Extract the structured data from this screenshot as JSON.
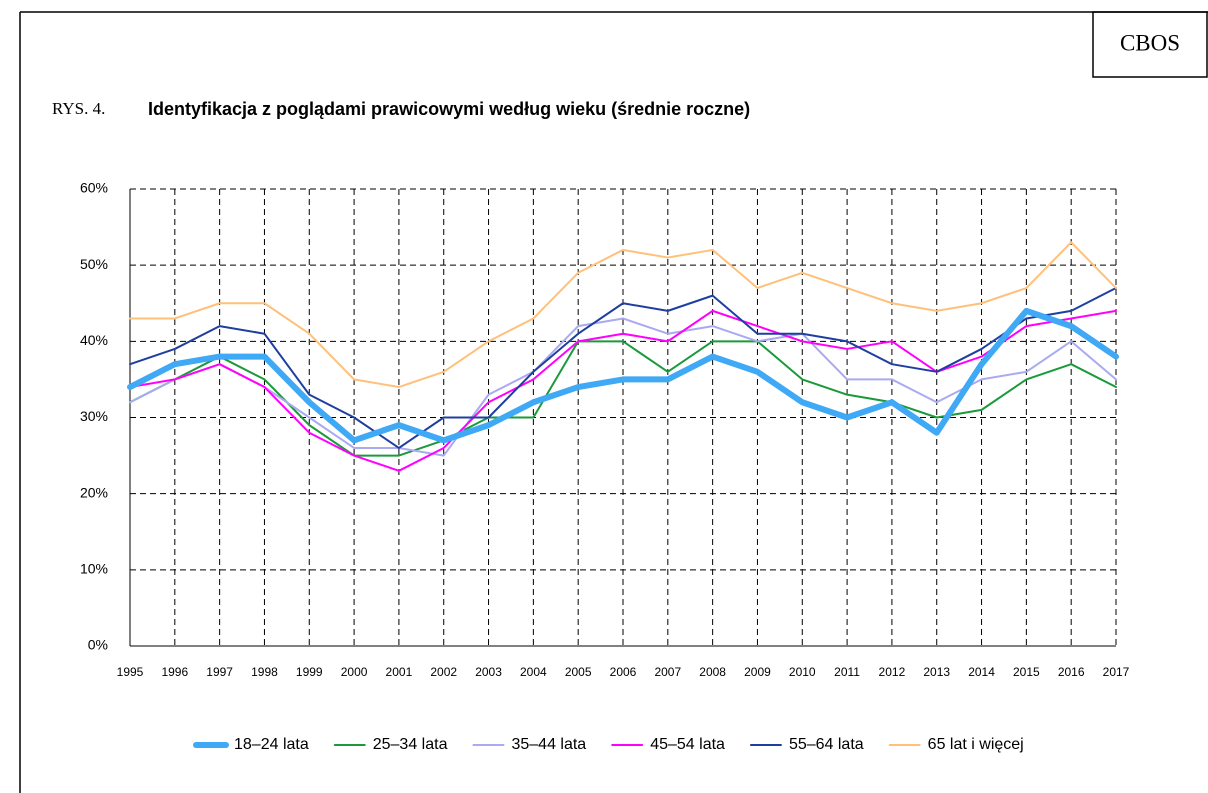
{
  "chart_data": {
    "type": "line",
    "brand": "CBOS",
    "figure_label": "RYS. 4.",
    "title": "Identyfikacja z poglądami prawicowymi według wieku (średnie roczne)",
    "x": [
      1995,
      1996,
      1997,
      1998,
      1999,
      2000,
      2001,
      2002,
      2003,
      2004,
      2005,
      2006,
      2007,
      2008,
      2009,
      2010,
      2011,
      2012,
      2013,
      2014,
      2015,
      2016,
      2017
    ],
    "xlim": [
      1995,
      2017
    ],
    "ylim": [
      0,
      60
    ],
    "yticks": [
      {
        "value": 0,
        "label": "0%"
      },
      {
        "value": 10,
        "label": "10%"
      },
      {
        "value": 20,
        "label": "20%"
      },
      {
        "value": 30,
        "label": "30%"
      },
      {
        "value": 40,
        "label": "40%"
      },
      {
        "value": 50,
        "label": "50%"
      },
      {
        "value": 60,
        "label": "60%"
      }
    ],
    "grid": true,
    "legend": "bottom",
    "series": [
      {
        "name": "18–24 lata",
        "color": "#3fa9f5",
        "linewidth": 6,
        "values": [
          34,
          37,
          38,
          38,
          32,
          27,
          29,
          27,
          29,
          32,
          34,
          35,
          35,
          38,
          36,
          32,
          30,
          32,
          28,
          37,
          44,
          42,
          38
        ]
      },
      {
        "name": "25–34 lata",
        "color": "#1a9a3a",
        "linewidth": 2,
        "values": [
          32,
          35,
          38,
          35,
          29,
          25,
          25,
          27,
          30,
          30,
          40,
          40,
          36,
          40,
          40,
          35,
          33,
          32,
          30,
          31,
          35,
          37,
          34
        ]
      },
      {
        "name": "35–44 lata",
        "color": "#a9aaf0",
        "linewidth": 2,
        "values": [
          32,
          35,
          37,
          34,
          30,
          26,
          26,
          25,
          33,
          36,
          42,
          43,
          41,
          42,
          40,
          41,
          35,
          35,
          32,
          35,
          36,
          40,
          35
        ]
      },
      {
        "name": "45–54 lata",
        "color": "#ff00ff",
        "linewidth": 2,
        "values": [
          34,
          35,
          37,
          34,
          28,
          25,
          23,
          26,
          32,
          35,
          40,
          41,
          40,
          44,
          42,
          40,
          39,
          40,
          36,
          38,
          42,
          43,
          44
        ]
      },
      {
        "name": "55–64 lata",
        "color": "#1f3fa0",
        "linewidth": 2,
        "values": [
          37,
          39,
          42,
          41,
          33,
          30,
          26,
          30,
          30,
          36,
          41,
          45,
          44,
          46,
          41,
          41,
          40,
          37,
          36,
          39,
          43,
          44,
          47
        ]
      },
      {
        "name": "65 lat i więcej",
        "color": "#ffc07a",
        "linewidth": 2,
        "values": [
          43,
          43,
          45,
          45,
          41,
          35,
          34,
          36,
          40,
          43,
          49,
          52,
          51,
          52,
          47,
          49,
          47,
          45,
          44,
          45,
          47,
          53,
          47
        ]
      }
    ]
  }
}
